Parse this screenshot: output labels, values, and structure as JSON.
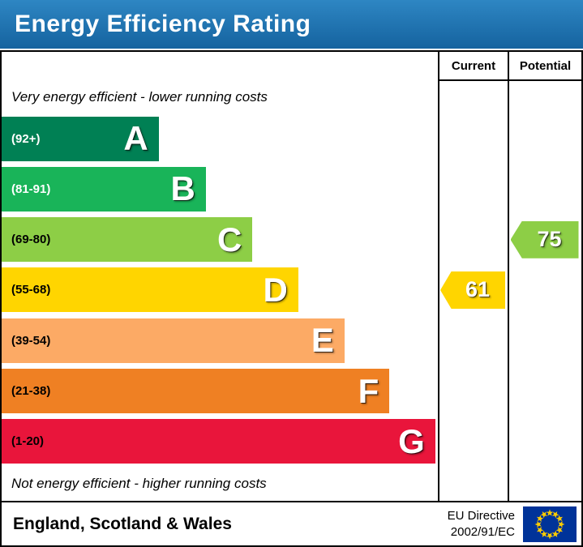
{
  "title": "Energy Efficiency Rating",
  "colors": {
    "banner_top": "#2e86c3",
    "banner_bottom": "#15639f",
    "border": "#000000",
    "eu_flag_blue": "#003399",
    "eu_flag_star": "#ffcc00"
  },
  "columns": {
    "current": "Current",
    "potential": "Potential"
  },
  "captions": {
    "top": "Very energy efficient - lower running costs",
    "bottom": "Not energy efficient - higher running costs"
  },
  "chart_data": {
    "type": "bar",
    "title": "Energy Efficiency Rating",
    "bands": [
      {
        "letter": "A",
        "range": "(92+)",
        "min": 92,
        "max": 100,
        "color": "#008054",
        "range_color": "#ffffff",
        "width_pct": 36
      },
      {
        "letter": "B",
        "range": "(81-91)",
        "min": 81,
        "max": 91,
        "color": "#19b459",
        "range_color": "#ffffff",
        "width_pct": 46.8
      },
      {
        "letter": "C",
        "range": "(69-80)",
        "min": 69,
        "max": 80,
        "color": "#8dce46",
        "range_color": "#000000",
        "width_pct": 57.5
      },
      {
        "letter": "D",
        "range": "(55-68)",
        "min": 55,
        "max": 68,
        "color": "#ffd500",
        "range_color": "#000000",
        "width_pct": 68
      },
      {
        "letter": "E",
        "range": "(39-54)",
        "min": 39,
        "max": 54,
        "color": "#fcaa65",
        "range_color": "#000000",
        "width_pct": 78.6
      },
      {
        "letter": "F",
        "range": "(21-38)",
        "min": 21,
        "max": 38,
        "color": "#ef8023",
        "range_color": "#000000",
        "width_pct": 88.9
      },
      {
        "letter": "G",
        "range": "(1-20)",
        "min": 1,
        "max": 20,
        "color": "#e9153b",
        "range_color": "#000000",
        "width_pct": 99.4
      }
    ],
    "current": {
      "value": 61,
      "band": "D",
      "color": "#ffd500"
    },
    "potential": {
      "value": 75,
      "band": "C",
      "color": "#8dce46"
    }
  },
  "footer": {
    "region": "England, Scotland & Wales",
    "directive_line1": "EU Directive",
    "directive_line2": "2002/91/EC"
  }
}
